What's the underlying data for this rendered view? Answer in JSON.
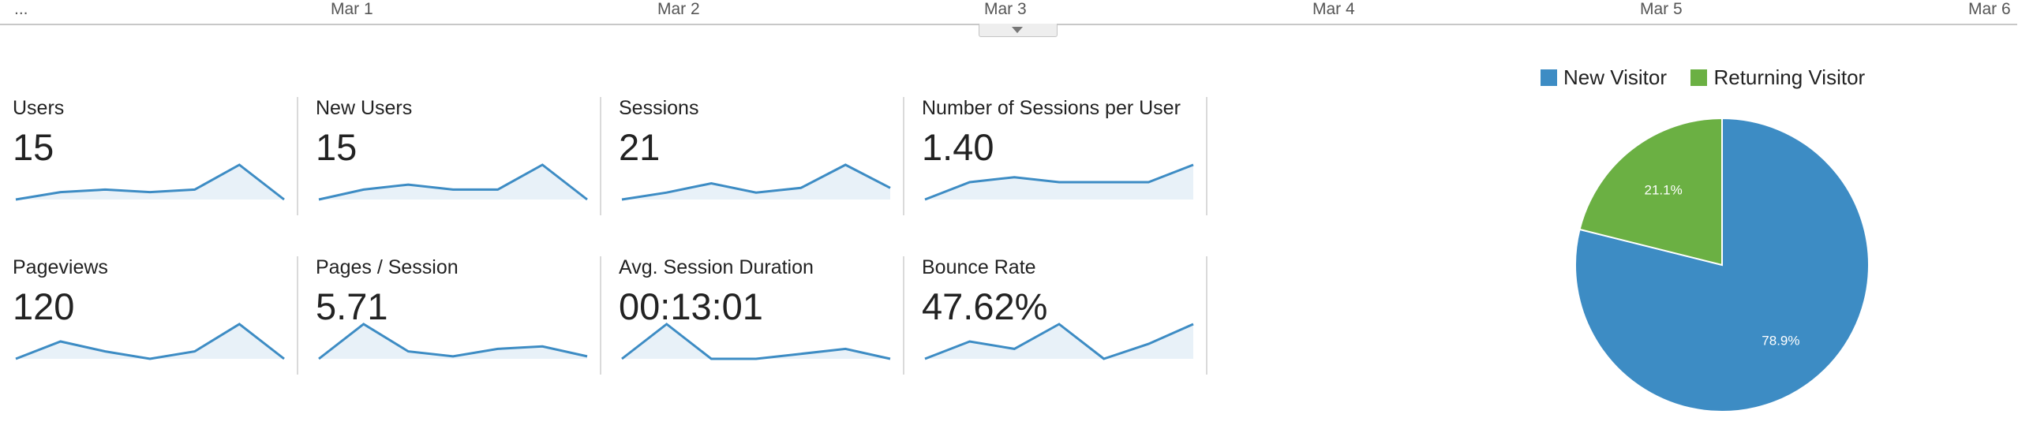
{
  "timeline": {
    "labels": [
      "...",
      "Mar 1",
      "Mar 2",
      "Mar 3",
      "Mar 4",
      "Mar 5",
      "Mar 6"
    ]
  },
  "metrics": [
    {
      "label": "Users",
      "value": "15",
      "spark": [
        1,
        4,
        5,
        4,
        5,
        15,
        1
      ]
    },
    {
      "label": "New Users",
      "value": "15",
      "spark": [
        1,
        5,
        7,
        5,
        5,
        15,
        1
      ]
    },
    {
      "label": "Sessions",
      "value": "21",
      "spark": [
        1,
        4,
        8,
        4,
        6,
        16,
        6
      ]
    },
    {
      "label": "Number of Sessions per User",
      "value": "1.40",
      "spark": [
        1,
        8,
        10,
        8,
        8,
        8,
        15
      ]
    },
    {
      "label": "Pageviews",
      "value": "120",
      "spark": [
        1,
        8,
        4,
        1,
        4,
        15,
        1
      ]
    },
    {
      "label": "Pages / Session",
      "value": "5.71",
      "spark": [
        1,
        15,
        4,
        2,
        5,
        6,
        2
      ]
    },
    {
      "label": "Avg. Session Duration",
      "value": "00:13:01",
      "spark": [
        1,
        15,
        1,
        1,
        3,
        5,
        1
      ]
    },
    {
      "label": "Bounce Rate",
      "value": "47.62%",
      "spark": [
        1,
        8,
        5,
        15,
        1,
        7,
        15
      ]
    }
  ],
  "legend": [
    {
      "label": "New Visitor",
      "color": "#3d8cc4"
    },
    {
      "label": "Returning Visitor",
      "color": "#6bb043"
    }
  ],
  "chart_data": {
    "type": "pie",
    "title": "",
    "legend_position": "top",
    "slices": [
      {
        "name": "New Visitor",
        "value": 78.9,
        "label": "78.9%",
        "color": "#3d8cc4"
      },
      {
        "name": "Returning Visitor",
        "value": 21.1,
        "label": "21.1%",
        "color": "#6bb043"
      }
    ]
  }
}
